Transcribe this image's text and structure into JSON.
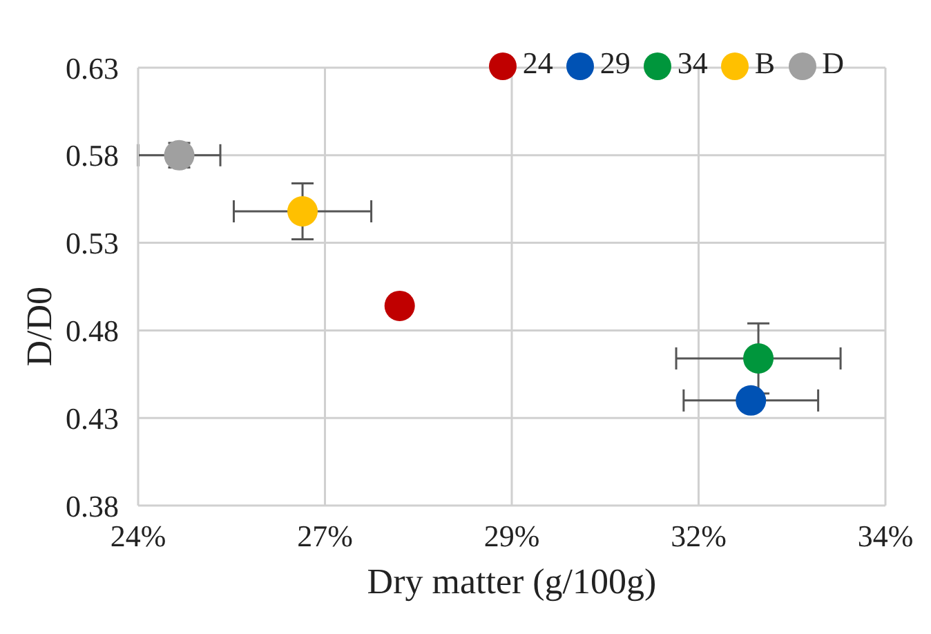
{
  "chart_data": {
    "type": "scatter",
    "xlabel": "Dry matter (g/100g)",
    "ylabel": "D/D0",
    "xlim": [
      0.24,
      0.34
    ],
    "xticks": [
      {
        "value": 0.24,
        "label": "24%"
      },
      {
        "value": 0.265,
        "label": "27%"
      },
      {
        "value": 0.29,
        "label": "29%"
      },
      {
        "value": 0.315,
        "label": "32%"
      },
      {
        "value": 0.34,
        "label": "34%"
      }
    ],
    "ylim": [
      0.38,
      0.63
    ],
    "yticks": [
      {
        "value": 0.38,
        "label": "0.38"
      },
      {
        "value": 0.43,
        "label": "0.43"
      },
      {
        "value": 0.48,
        "label": "0.48"
      },
      {
        "value": 0.53,
        "label": "0.53"
      },
      {
        "value": 0.58,
        "label": "0.58"
      },
      {
        "value": 0.63,
        "label": "0.63"
      }
    ],
    "grid": true,
    "legend": "top right",
    "marker": "circle",
    "series": [
      {
        "name": "24",
        "color": "#c00000",
        "x": [
          0.275
        ],
        "values": [
          0.494
        ]
      },
      {
        "name": "29",
        "color": "#0052b4",
        "x": [
          0.322
        ],
        "values": [
          0.44
        ],
        "xerrors": [
          0.009
        ]
      },
      {
        "name": "34",
        "color": "#00963c",
        "x": [
          0.323
        ],
        "values": [
          0.464
        ],
        "errors": [
          0.02
        ],
        "xerrors": [
          0.011
        ]
      },
      {
        "name": "B",
        "color": "#ffc000",
        "x": [
          0.262
        ],
        "values": [
          0.548
        ],
        "errors": [
          0.016
        ],
        "xerrors": [
          0.0092
        ]
      },
      {
        "name": "D",
        "color": "#a0a0a0",
        "x": [
          0.2455
        ],
        "values": [
          0.58
        ],
        "errors": [
          0.007
        ],
        "xerrors": [
          0.0055
        ]
      }
    ]
  }
}
